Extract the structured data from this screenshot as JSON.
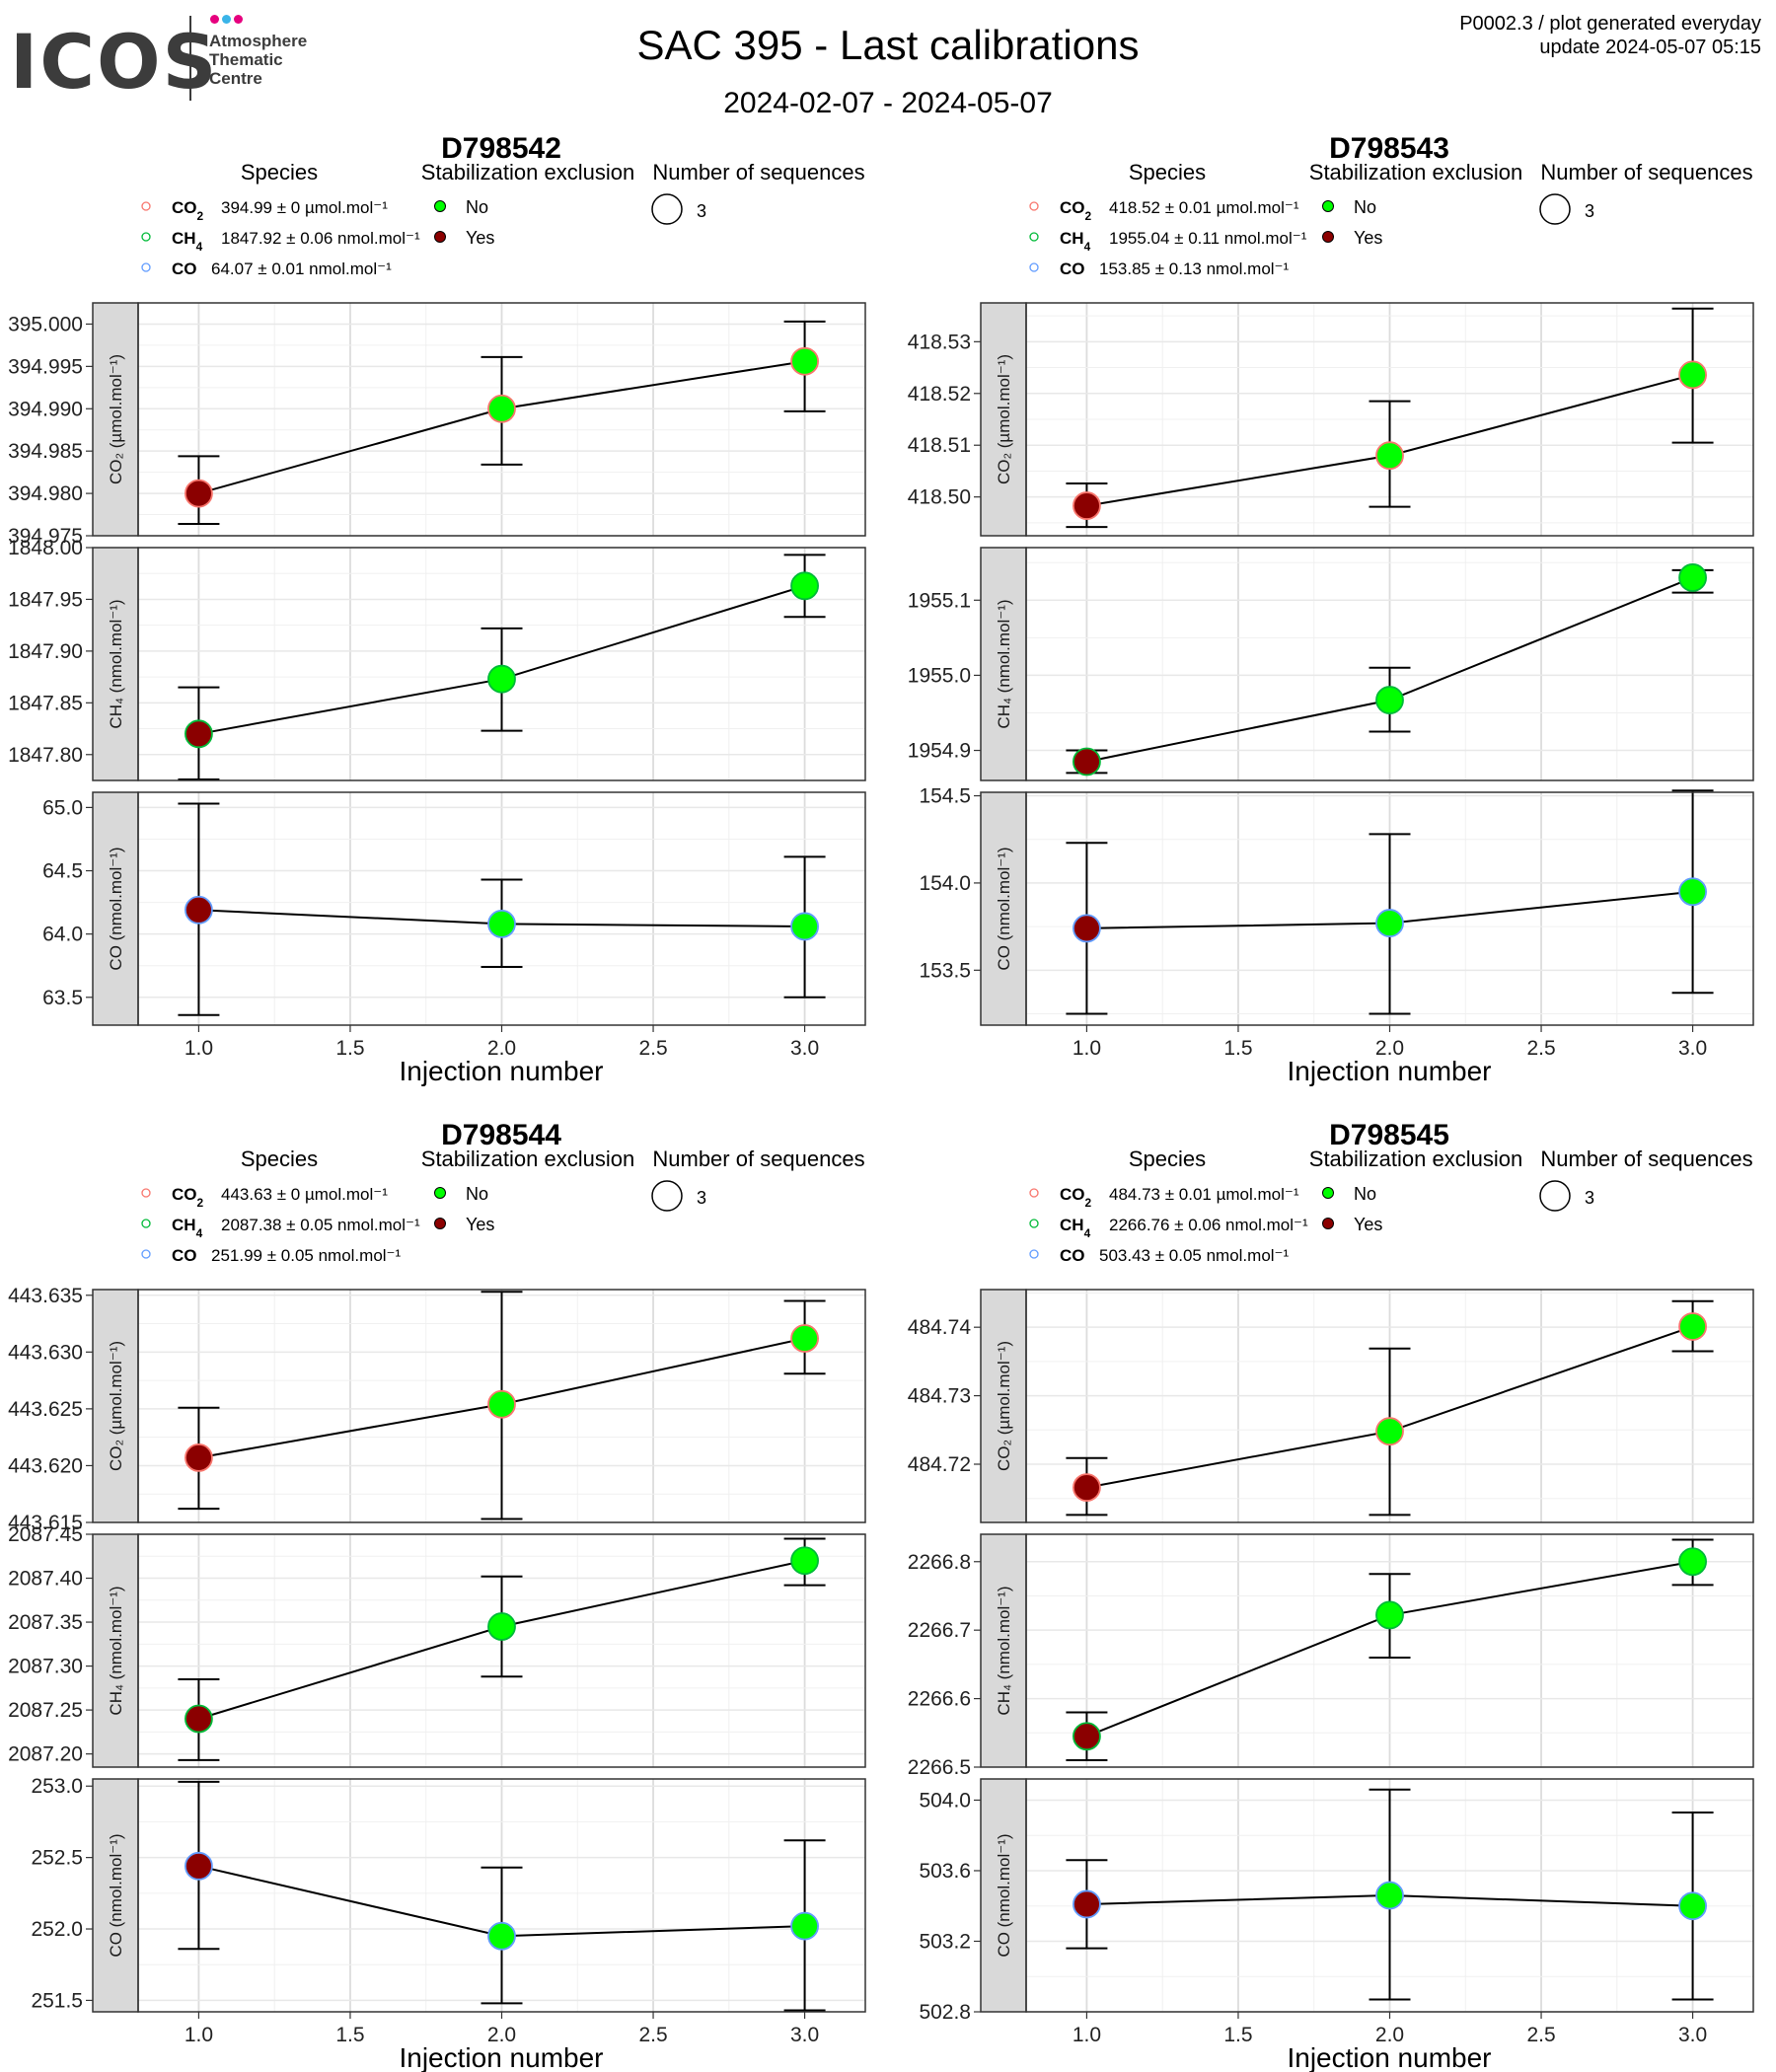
{
  "header": {
    "logo_text": "ICOS",
    "logo_subtitle": [
      "Atmosphere",
      "Thematic",
      "Centre"
    ],
    "logo_dot_colors": [
      "#e6007e",
      "#3ab4e8",
      "#e6007e"
    ],
    "title": "SAC 395 - Last calibrations",
    "period": "2024-02-07 - 2024-05-07",
    "meta_line1": "P0002.3 / plot generated everyday",
    "meta_line2": "update  2024-05-07 05:15"
  },
  "legend_titles": {
    "species": "Species",
    "stabilization": "Stabilization exclusion",
    "sequences": "Number of sequences"
  },
  "legend_items": {
    "stabilization_no": "No",
    "stabilization_yes": "Yes",
    "sequences_value": "3"
  },
  "xlabel": "Injection number",
  "colors": {
    "no": "#00ff00",
    "yes": "#8b0000",
    "co2": "#f8766d",
    "ch4": "#00ba38",
    "co": "#619cff",
    "strip": "#d9d9d9"
  },
  "chart_data": [
    {
      "type": "scatter",
      "title": "D798542",
      "x": [
        1,
        2,
        3
      ],
      "xlim": [
        0.8,
        3.2
      ],
      "xticks": [
        "1.0",
        "1.5",
        "2.0",
        "2.5",
        "3.0"
      ],
      "legend_species": [
        {
          "species": "CO2",
          "text": "394.99 ± 0 µmol.mol⁻¹"
        },
        {
          "species": "CH4",
          "text": "1847.92 ± 0.06 nmol.mol⁻¹"
        },
        {
          "species": "CO",
          "text": "64.07 ± 0.01 nmol.mol⁻¹"
        }
      ],
      "panels": [
        {
          "species": "CO2",
          "ylabel": "CO₂ (µmol.mol⁻¹)",
          "ylim": [
            394.975,
            395.0025
          ],
          "yticks": [
            "394.975",
            "394.980",
            "394.985",
            "394.990",
            "394.995",
            "395.000"
          ],
          "values": [
            394.98,
            394.99,
            394.9956
          ],
          "err_low": [
            394.9764,
            394.9834,
            394.9897
          ],
          "err_high": [
            394.9844,
            394.9961,
            395.0003
          ],
          "excluded": [
            "Yes",
            "No",
            "No"
          ]
        },
        {
          "species": "CH4",
          "ylabel": "CH₄ (nmol.mol⁻¹)",
          "ylim": [
            1847.775,
            1848.0
          ],
          "yticks": [
            "1847.80",
            "1847.85",
            "1847.90",
            "1847.95",
            "1848.00"
          ],
          "values": [
            1847.82,
            1847.873,
            1847.963
          ],
          "err_low": [
            1847.776,
            1847.823,
            1847.933
          ],
          "err_high": [
            1847.865,
            1847.922,
            1847.993
          ],
          "excluded": [
            "Yes",
            "No",
            "No"
          ]
        },
        {
          "species": "CO",
          "ylabel": "CO (nmol.mol⁻¹)",
          "ylim": [
            63.28,
            65.12
          ],
          "yticks": [
            "63.5",
            "64.0",
            "64.5",
            "65.0"
          ],
          "values": [
            64.19,
            64.08,
            64.06
          ],
          "err_low": [
            63.36,
            63.74,
            63.5
          ],
          "err_high": [
            65.03,
            64.43,
            64.61
          ],
          "excluded": [
            "Yes",
            "No",
            "No"
          ]
        }
      ]
    },
    {
      "type": "scatter",
      "title": "D798543",
      "x": [
        1,
        2,
        3
      ],
      "xlim": [
        0.8,
        3.2
      ],
      "xticks": [
        "1.0",
        "1.5",
        "2.0",
        "2.5",
        "3.0"
      ],
      "legend_species": [
        {
          "species": "CO2",
          "text": "418.52 ± 0.01 µmol.mol⁻¹"
        },
        {
          "species": "CH4",
          "text": "1955.04 ± 0.11 nmol.mol⁻¹"
        },
        {
          "species": "CO",
          "text": "153.85 ± 0.13 nmol.mol⁻¹"
        }
      ],
      "panels": [
        {
          "species": "CO2",
          "ylabel": "CO₂ (µmol.mol⁻¹)",
          "ylim": [
            418.4925,
            418.5375
          ],
          "yticks": [
            "418.50",
            "418.51",
            "418.52",
            "418.53"
          ],
          "values": [
            418.4983,
            418.508,
            418.5236
          ],
          "err_low": [
            418.4942,
            418.4981,
            418.5105
          ],
          "err_high": [
            418.5026,
            418.5185,
            418.5364
          ],
          "excluded": [
            "Yes",
            "No",
            "No"
          ]
        },
        {
          "species": "CH4",
          "ylabel": "CH₄ (nmol.mol⁻¹)",
          "ylim": [
            1954.86,
            1955.17
          ],
          "yticks": [
            "1954.9",
            "1955.0",
            "1955.1"
          ],
          "values": [
            1954.885,
            1954.967,
            1955.13
          ],
          "err_low": [
            1954.87,
            1954.925,
            1955.11
          ],
          "err_high": [
            1954.9,
            1955.01,
            1955.14
          ],
          "excluded": [
            "Yes",
            "No",
            "No"
          ]
        },
        {
          "species": "CO",
          "ylabel": "CO (nmol.mol⁻¹)",
          "ylim": [
            153.185,
            154.52
          ],
          "yticks": [
            "153.5",
            "154.0",
            "154.5"
          ],
          "values": [
            153.74,
            153.77,
            153.95
          ],
          "err_low": [
            153.25,
            153.25,
            153.37
          ],
          "err_high": [
            154.23,
            154.28,
            154.53
          ],
          "excluded": [
            "Yes",
            "No",
            "No"
          ]
        }
      ]
    },
    {
      "type": "scatter",
      "title": "D798544",
      "x": [
        1,
        2,
        3
      ],
      "xlim": [
        0.8,
        3.2
      ],
      "xticks": [
        "1.0",
        "1.5",
        "2.0",
        "2.5",
        "3.0"
      ],
      "legend_species": [
        {
          "species": "CO2",
          "text": "443.63 ± 0 µmol.mol⁻¹"
        },
        {
          "species": "CH4",
          "text": "2087.38 ± 0.05 nmol.mol⁻¹"
        },
        {
          "species": "CO",
          "text": "251.99 ± 0.05 nmol.mol⁻¹"
        }
      ],
      "panels": [
        {
          "species": "CO2",
          "ylabel": "CO₂ (µmol.mol⁻¹)",
          "ylim": [
            443.615,
            443.6355
          ],
          "yticks": [
            "443.615",
            "443.620",
            "443.625",
            "443.630",
            "443.635"
          ],
          "values": [
            443.6207,
            443.6254,
            443.6312
          ],
          "err_low": [
            443.6162,
            443.6153,
            443.6281
          ],
          "err_high": [
            443.6251,
            443.6353,
            443.6345
          ],
          "excluded": [
            "Yes",
            "No",
            "No"
          ]
        },
        {
          "species": "CH4",
          "ylabel": "CH₄ (nmol.mol⁻¹)",
          "ylim": [
            2087.185,
            2087.45
          ],
          "yticks": [
            "2087.20",
            "2087.25",
            "2087.30",
            "2087.35",
            "2087.40",
            "2087.45"
          ],
          "values": [
            2087.24,
            2087.345,
            2087.42
          ],
          "err_low": [
            2087.193,
            2087.288,
            2087.392
          ],
          "err_high": [
            2087.285,
            2087.402,
            2087.445
          ],
          "excluded": [
            "Yes",
            "No",
            "No"
          ]
        },
        {
          "species": "CO",
          "ylabel": "CO (nmol.mol⁻¹)",
          "ylim": [
            251.42,
            253.05
          ],
          "yticks": [
            "251.5",
            "252.0",
            "252.5",
            "253.0"
          ],
          "values": [
            252.44,
            251.95,
            252.02
          ],
          "err_low": [
            251.86,
            251.48,
            251.43
          ],
          "err_high": [
            253.03,
            252.43,
            252.62
          ],
          "excluded": [
            "Yes",
            "No",
            "No"
          ]
        }
      ]
    },
    {
      "type": "scatter",
      "title": "D798545",
      "x": [
        1,
        2,
        3
      ],
      "xlim": [
        0.8,
        3.2
      ],
      "xticks": [
        "1.0",
        "1.5",
        "2.0",
        "2.5",
        "3.0"
      ],
      "legend_species": [
        {
          "species": "CO2",
          "text": "484.73 ± 0.01 µmol.mol⁻¹"
        },
        {
          "species": "CH4",
          "text": "2266.76 ± 0.06 nmol.mol⁻¹"
        },
        {
          "species": "CO",
          "text": "503.43 ± 0.05 nmol.mol⁻¹"
        }
      ],
      "panels": [
        {
          "species": "CO2",
          "ylabel": "CO₂ (µmol.mol⁻¹)",
          "ylim": [
            484.7115,
            484.7455
          ],
          "yticks": [
            "484.72",
            "484.73",
            "484.74"
          ],
          "values": [
            484.7166,
            484.7248,
            484.7401
          ],
          "err_low": [
            484.7126,
            484.7126,
            484.7365
          ],
          "err_high": [
            484.7209,
            484.7369,
            484.7438
          ],
          "excluded": [
            "Yes",
            "No",
            "No"
          ]
        },
        {
          "species": "CH4",
          "ylabel": "CH₄ (nmol.mol⁻¹)",
          "ylim": [
            2266.5,
            2266.84
          ],
          "yticks": [
            "2266.5",
            "2266.6",
            "2266.7",
            "2266.8"
          ],
          "values": [
            2266.545,
            2266.722,
            2266.8
          ],
          "err_low": [
            2266.51,
            2266.66,
            2266.766
          ],
          "err_high": [
            2266.58,
            2266.782,
            2266.832
          ],
          "excluded": [
            "Yes",
            "No",
            "No"
          ]
        },
        {
          "species": "CO",
          "ylabel": "CO (nmol.mol⁻¹)",
          "ylim": [
            502.8,
            504.12
          ],
          "yticks": [
            "502.8",
            "503.2",
            "503.6",
            "504.0"
          ],
          "values": [
            503.41,
            503.46,
            503.4
          ],
          "err_low": [
            503.16,
            502.87,
            502.87
          ],
          "err_high": [
            503.66,
            504.06,
            503.93
          ],
          "excluded": [
            "Yes",
            "No",
            "No"
          ]
        }
      ]
    }
  ]
}
